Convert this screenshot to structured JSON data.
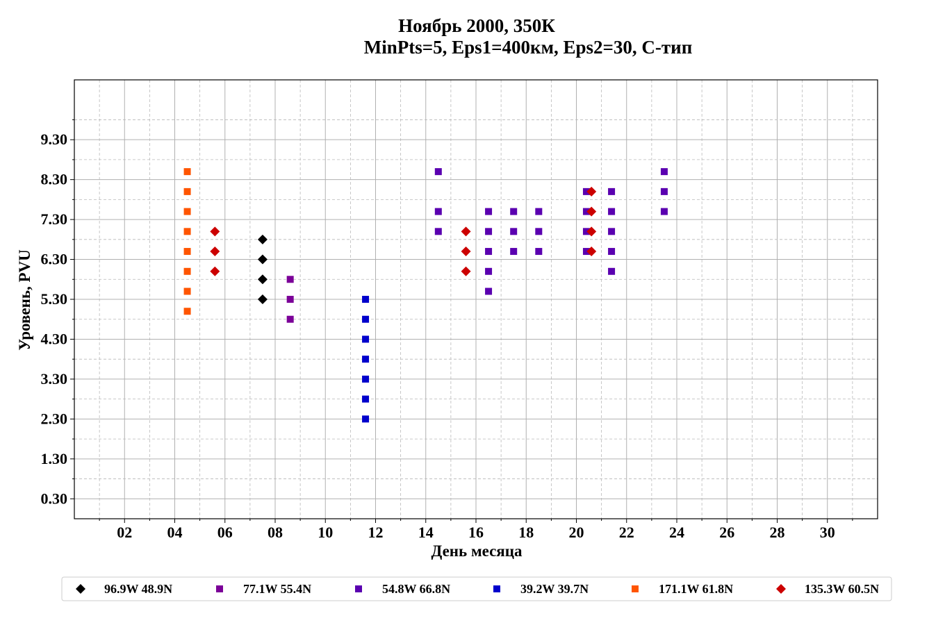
{
  "chart_data": {
    "type": "scatter",
    "title": "Ноябрь 2000, 350К",
    "subtitle": "MinPts=5, Eps1=400км, Eps2=30, С-тип",
    "xlabel": "День месяца",
    "ylabel": "Уровень, PVU",
    "xlim": [
      0,
      32
    ],
    "ylim": [
      -0.2,
      10.8
    ],
    "x_ticks": [
      "02",
      "04",
      "06",
      "08",
      "10",
      "12",
      "14",
      "16",
      "18",
      "20",
      "22",
      "24",
      "26",
      "28",
      "30"
    ],
    "y_ticks": [
      "0.30",
      "1.30",
      "2.30",
      "3.30",
      "4.30",
      "5.30",
      "6.30",
      "7.30",
      "8.30",
      "9.30"
    ],
    "grid": true,
    "legend_position": "bottom",
    "series": [
      {
        "name": "96.9W 48.9N",
        "marker": "diamond",
        "color": "#000000",
        "points": [
          [
            7.5,
            5.3
          ],
          [
            7.5,
            5.8
          ],
          [
            7.5,
            6.3
          ],
          [
            7.5,
            6.8
          ]
        ]
      },
      {
        "name": "77.1W 55.4N",
        "marker": "square",
        "color": "#7b0098",
        "points": [
          [
            8.6,
            4.8
          ],
          [
            8.6,
            5.3
          ],
          [
            8.6,
            5.8
          ]
        ]
      },
      {
        "name": "54.8W 66.8N",
        "marker": "square",
        "color": "#5a00b0",
        "points": [
          [
            14.5,
            7.0
          ],
          [
            14.5,
            7.5
          ],
          [
            14.5,
            8.5
          ],
          [
            16.5,
            5.5
          ],
          [
            16.5,
            6.0
          ],
          [
            16.5,
            6.5
          ],
          [
            16.5,
            7.0
          ],
          [
            16.5,
            7.5
          ],
          [
            17.5,
            6.5
          ],
          [
            17.5,
            7.0
          ],
          [
            17.5,
            7.5
          ],
          [
            18.5,
            6.5
          ],
          [
            18.5,
            7.0
          ],
          [
            18.5,
            7.5
          ],
          [
            20.4,
            6.5
          ],
          [
            20.4,
            7.0
          ],
          [
            20.4,
            7.5
          ],
          [
            20.4,
            8.0
          ],
          [
            21.4,
            6.0
          ],
          [
            21.4,
            6.5
          ],
          [
            21.4,
            7.0
          ],
          [
            21.4,
            7.5
          ],
          [
            21.4,
            8.0
          ],
          [
            23.5,
            7.5
          ],
          [
            23.5,
            8.0
          ],
          [
            23.5,
            8.5
          ]
        ]
      },
      {
        "name": "39.2W 39.7N",
        "marker": "square",
        "color": "#0000cc",
        "points": [
          [
            11.6,
            2.3
          ],
          [
            11.6,
            2.8
          ],
          [
            11.6,
            3.3
          ],
          [
            11.6,
            3.8
          ],
          [
            11.6,
            4.3
          ],
          [
            11.6,
            4.8
          ],
          [
            11.6,
            5.3
          ]
        ]
      },
      {
        "name": "171.1W 61.8N",
        "marker": "square",
        "color": "#ff5500",
        "points": [
          [
            4.5,
            5.0
          ],
          [
            4.5,
            5.5
          ],
          [
            4.5,
            6.0
          ],
          [
            4.5,
            6.5
          ],
          [
            4.5,
            7.0
          ],
          [
            4.5,
            7.5
          ],
          [
            4.5,
            8.0
          ],
          [
            4.5,
            8.5
          ]
        ]
      },
      {
        "name": "135.3W 60.5N",
        "marker": "diamond",
        "color": "#cc0000",
        "points": [
          [
            5.6,
            6.0
          ],
          [
            5.6,
            6.5
          ],
          [
            5.6,
            7.0
          ],
          [
            15.6,
            6.0
          ],
          [
            15.6,
            6.5
          ],
          [
            15.6,
            7.0
          ],
          [
            20.6,
            6.5
          ],
          [
            20.6,
            7.0
          ],
          [
            20.6,
            7.5
          ],
          [
            20.6,
            8.0
          ]
        ]
      }
    ]
  }
}
